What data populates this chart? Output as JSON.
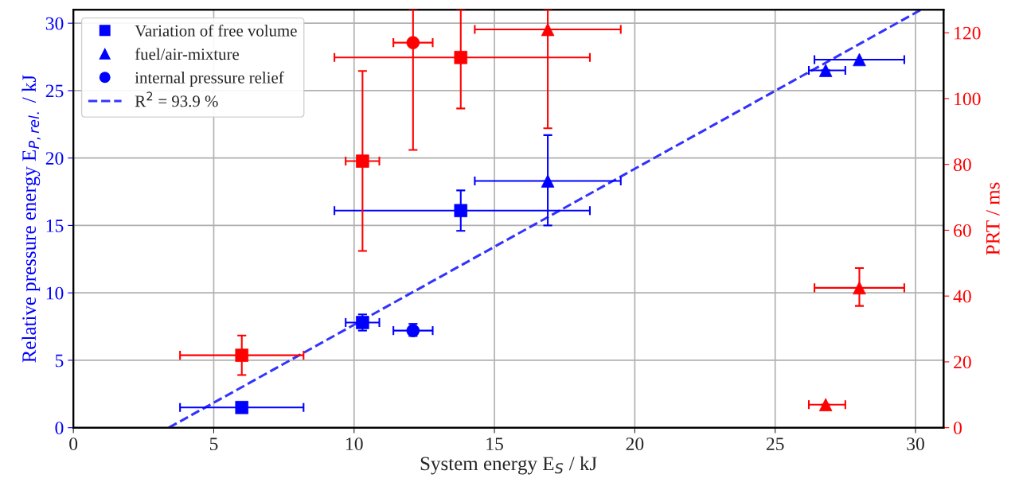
{
  "chart_data": {
    "type": "scatter",
    "xlabel": "System energy E$_{S}$ / kJ",
    "ylabel": "Relative pressure energy E$_{P,rel.}$ / kJ",
    "y2label": "PRT / ms",
    "xlim": [
      0,
      31
    ],
    "xticks": [
      0,
      5,
      10,
      15,
      20,
      25,
      30
    ],
    "ylim": [
      0,
      31
    ],
    "yticks": [
      0,
      5,
      10,
      15,
      20,
      25,
      30
    ],
    "y2lim": [
      0,
      127
    ],
    "y2ticks": [
      0,
      20,
      40,
      60,
      80,
      100,
      120
    ],
    "grid": true,
    "legend": "top left",
    "series": [
      {
        "name": "Variation of free volume",
        "color": "#0000ff",
        "marker": "square",
        "x": [
          6.0,
          10.3,
          13.8
        ],
        "values": [
          1.5,
          7.8,
          16.1
        ],
        "errors": [
          null,
          [
            7.2,
            8.4
          ],
          [
            14.6,
            17.6
          ]
        ],
        "xerrors": [
          [
            3.8,
            8.2
          ],
          [
            9.7,
            10.9
          ],
          [
            9.3,
            18.4
          ]
        ]
      },
      {
        "name": "fuel/air-mixture",
        "color": "#0000ff",
        "marker": "triangle",
        "x": [
          16.9,
          26.8,
          28.0
        ],
        "values": [
          18.3,
          26.5,
          27.3
        ],
        "errors": [
          [
            15.0,
            21.7
          ],
          null,
          null
        ],
        "xerrors": [
          [
            14.3,
            19.5
          ],
          [
            26.2,
            27.5
          ],
          [
            26.4,
            29.6
          ]
        ]
      },
      {
        "name": "internal pressure relief",
        "color": "#0000ff",
        "marker": "circle",
        "x": [
          12.1
        ],
        "values": [
          7.2
        ],
        "errors": [
          [
            6.8,
            7.7
          ]
        ],
        "xerrors": [
          [
            11.4,
            12.8
          ]
        ]
      },
      {
        "color": "#ff0000",
        "marker": "square",
        "axis": "y2",
        "x": [
          6.0,
          10.3,
          13.8
        ],
        "values": [
          22,
          81,
          112.5
        ],
        "errors": [
          [
            16,
            28
          ],
          [
            53.7,
            108.4
          ],
          [
            97,
            127
          ]
        ],
        "xerrors": [
          [
            3.8,
            8.2
          ],
          [
            9.7,
            10.9
          ],
          [
            9.3,
            18.4
          ]
        ]
      },
      {
        "color": "#ff0000",
        "marker": "triangle",
        "axis": "y2",
        "x": [
          16.9,
          26.8,
          28.0
        ],
        "values": [
          121,
          7,
          42.5
        ],
        "errors": [
          [
            91,
            127
          ],
          null,
          [
            37,
            48.5
          ]
        ],
        "xerrors": [
          [
            14.3,
            19.5
          ],
          [
            26.2,
            27.5
          ],
          [
            26.4,
            29.6
          ]
        ]
      },
      {
        "color": "#ff0000",
        "marker": "circle",
        "axis": "y2",
        "x": [
          12.1
        ],
        "values": [
          117
        ],
        "errors": [
          [
            84.4,
            127
          ]
        ],
        "xerrors": [
          [
            11.4,
            12.8
          ]
        ]
      },
      {
        "name": "R$^{2}$ = 93.9 %",
        "type": "line",
        "line_style": "dashed",
        "marker": "none",
        "color": "#3333ff",
        "x": [
          3.4,
          30.2
        ],
        "values": [
          0,
          31
        ]
      }
    ]
  }
}
